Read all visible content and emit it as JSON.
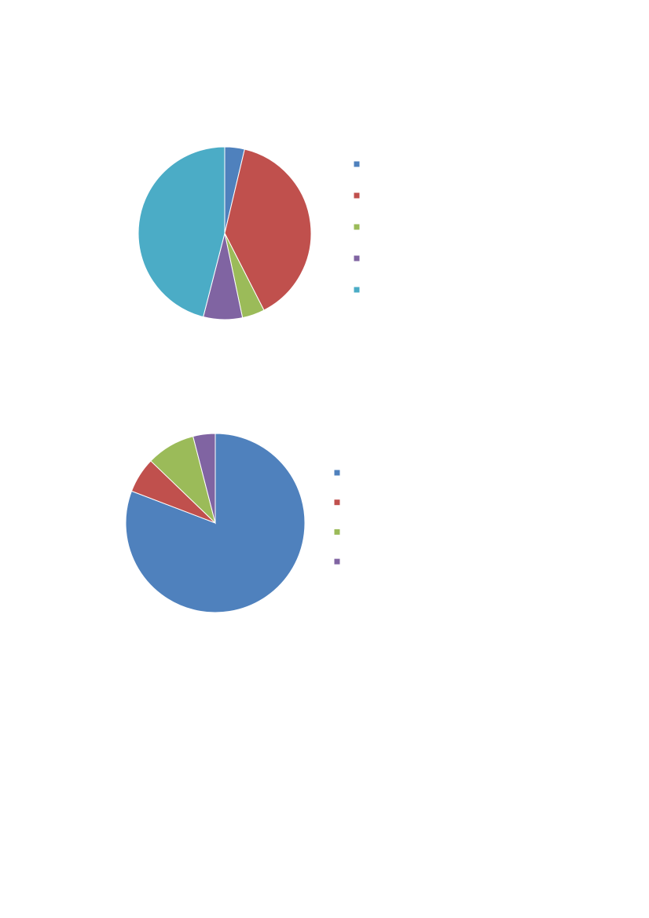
{
  "chart_data": [
    {
      "type": "pie",
      "categories": [
        null,
        null,
        null,
        null,
        null
      ],
      "values": [
        3.7,
        38.8,
        4.2,
        7.3,
        46.0
      ],
      "colors": [
        "#4f81bd",
        "#c0504d",
        "#9bbb59",
        "#8064a2",
        "#4bacc6"
      ]
    },
    {
      "type": "pie",
      "categories": [
        null,
        null,
        null,
        null
      ],
      "values": [
        80.8,
        6.4,
        8.8,
        4.0
      ],
      "colors": [
        "#4f81bd",
        "#c0504d",
        "#9bbb59",
        "#8064a2"
      ]
    }
  ]
}
